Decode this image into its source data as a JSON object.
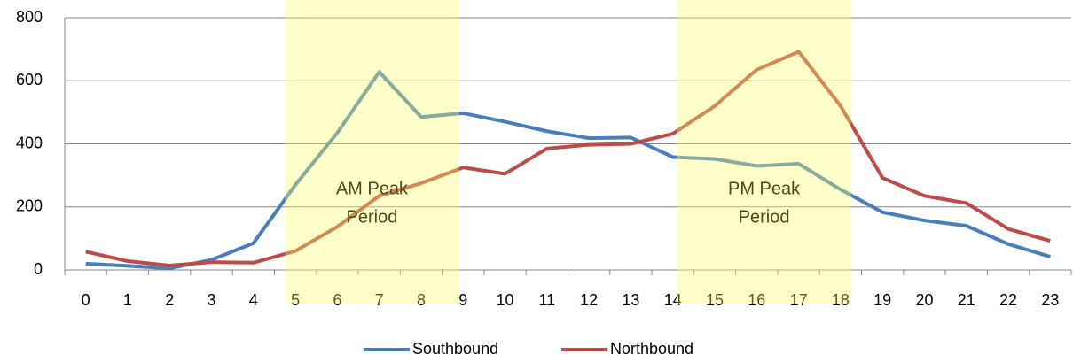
{
  "chart_data": {
    "type": "line",
    "categories": [
      "0",
      "1",
      "2",
      "3",
      "4",
      "5",
      "6",
      "7",
      "8",
      "9",
      "10",
      "11",
      "12",
      "13",
      "14",
      "15",
      "16",
      "17",
      "18",
      "19",
      "20",
      "21",
      "22",
      "23"
    ],
    "series": [
      {
        "name": "Southbound",
        "color": "#4a7ebb",
        "values": [
          20,
          13,
          5,
          32,
          85,
          270,
          435,
          628,
          485,
          497,
          470,
          440,
          418,
          420,
          358,
          352,
          330,
          337,
          255,
          183,
          157,
          140,
          82,
          42
        ]
      },
      {
        "name": "Northbound",
        "color": "#be4b48",
        "values": [
          58,
          28,
          14,
          25,
          23,
          60,
          137,
          235,
          275,
          325,
          305,
          385,
          397,
          400,
          432,
          520,
          635,
          692,
          520,
          292,
          235,
          212,
          130,
          92
        ]
      }
    ],
    "ylim": [
      0,
      800
    ],
    "yticks": [
      0,
      200,
      400,
      600,
      800
    ],
    "grid": true,
    "legend": "bottom",
    "annotations": [
      {
        "lines": [
          "AM Peak",
          "Period"
        ]
      },
      {
        "lines": [
          "PM Peak",
          "Period"
        ]
      }
    ]
  }
}
